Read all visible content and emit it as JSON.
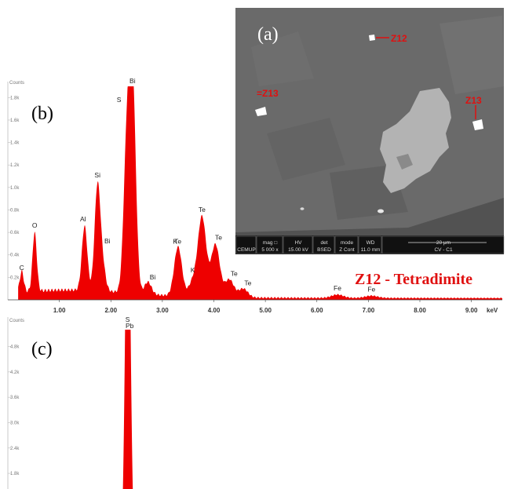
{
  "colors": {
    "spectrum": "#ee0000",
    "annotation": "#e01010",
    "sem_bg": "#6a6a6a"
  },
  "chart_data": [
    {
      "type": "area",
      "panel": "(b)",
      "ylabel": "Counts",
      "y_ticks": [
        "0.2k",
        "0.4k",
        "0.6k",
        "0.8k",
        "1.0k",
        "1.2k",
        "1.4k",
        "1.6k",
        "1.8k"
      ],
      "x_ticks": [
        "1.00",
        "2.00",
        "3.00",
        "4.00",
        "5.00",
        "6.00",
        "7.00",
        "8.00",
        "9.00"
      ],
      "xunit": "keV",
      "xlim": [
        0,
        9.6
      ],
      "ylim": [
        0,
        1.9
      ],
      "annotation": "Z12 - Tetradimite",
      "peaks": [
        {
          "label": "C",
          "x": 0.27,
          "y": 0.18
        },
        {
          "label": "O",
          "x": 0.52,
          "y": 0.52
        },
        {
          "label": "Al",
          "x": 1.49,
          "y": 0.57
        },
        {
          "label": "Si",
          "x": 1.74,
          "y": 0.92
        },
        {
          "label": "Bi",
          "x": 1.84,
          "y": 0.21
        },
        {
          "label": "S",
          "x": 2.31,
          "y": 1.25
        },
        {
          "label": "Bi",
          "x": 2.42,
          "y": 1.86
        },
        {
          "label": "Bi",
          "x": 2.72,
          "y": 0.11
        },
        {
          "label": "Te",
          "x": 3.3,
          "y": 0.24
        },
        {
          "label": "K",
          "x": 3.31,
          "y": 0.2
        },
        {
          "label": "K",
          "x": 3.59,
          "y": 0.13
        },
        {
          "label": "Te",
          "x": 3.77,
          "y": 0.71
        },
        {
          "label": "Te",
          "x": 4.03,
          "y": 0.47
        },
        {
          "label": "Te",
          "x": 4.3,
          "y": 0.16
        },
        {
          "label": "Te",
          "x": 4.57,
          "y": 0.08
        },
        {
          "label": "Fe",
          "x": 6.4,
          "y": 0.03
        },
        {
          "label": "Fe",
          "x": 7.06,
          "y": 0.02
        }
      ]
    },
    {
      "type": "area",
      "panel": "(c)",
      "ylabel": "Counts",
      "y_ticks": [
        "1.8k",
        "2.4k",
        "3.0k",
        "3.6k",
        "4.2k",
        "4.8k"
      ],
      "xlim": [
        0,
        9.6
      ],
      "ylim": [
        0,
        5.2
      ],
      "peaks": [
        {
          "label": "S",
          "x": 2.31,
          "y": 5.2
        },
        {
          "label": "Pb",
          "x": 2.35,
          "y": 5.1
        }
      ]
    }
  ],
  "sem": {
    "panel": "(a)",
    "labels": [
      "Z12",
      "=Z13",
      "Z13"
    ],
    "databar": {
      "cells": [
        {
          "top": "",
          "bottom": "CEMUP"
        },
        {
          "top": "mag □",
          "bottom": "5 000 x"
        },
        {
          "top": "HV",
          "bottom": "15.00 kV"
        },
        {
          "top": "det",
          "bottom": "BSED"
        },
        {
          "top": "mode",
          "bottom": "Z Cont"
        },
        {
          "top": "WD",
          "bottom": "11.0 mm"
        },
        {
          "top": "20 μm",
          "bottom": "CV - C1"
        }
      ]
    }
  }
}
